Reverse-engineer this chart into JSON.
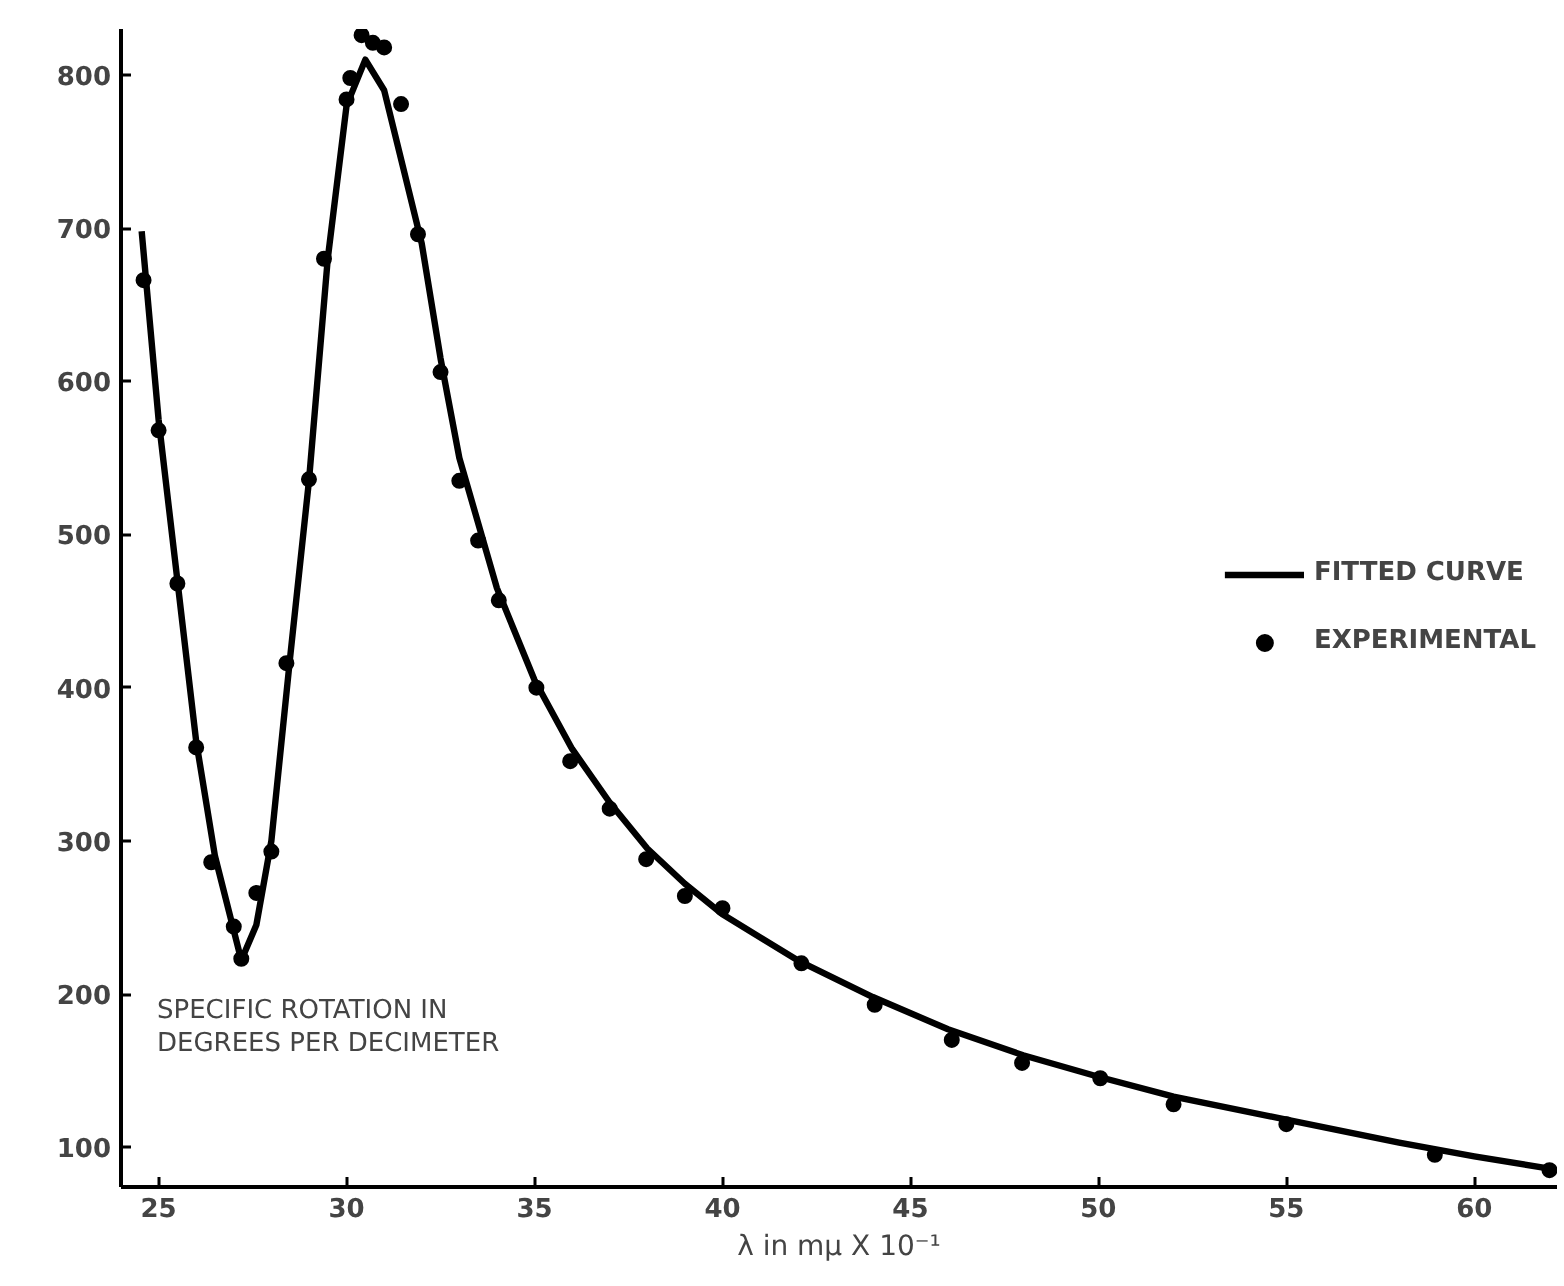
{
  "chart_data": {
    "type": "line",
    "xlabel": "λ in mμ X 10⁻¹",
    "ylabel": "SPECIFIC ROTATION IN\nDEGREES PER DECIMETER",
    "xlim": [
      24,
      62.2
    ],
    "ylim": [
      74,
      830
    ],
    "xticks": [
      25,
      30,
      35,
      40,
      45,
      50,
      55,
      60
    ],
    "yticks": [
      100,
      200,
      300,
      400,
      500,
      600,
      700,
      800
    ],
    "grid": false,
    "legend": "right",
    "series": [
      {
        "name": "FITTED CURVE",
        "line_style": "solid",
        "color": "#000000",
        "x": [
          24.55,
          25,
          25.5,
          26,
          26.5,
          27.2,
          27.6,
          28,
          28.5,
          29,
          29.5,
          30,
          30.5,
          31,
          31.5,
          32,
          32.5,
          33,
          34,
          35,
          36,
          37,
          38,
          39,
          40,
          42,
          44,
          46,
          48,
          50,
          52,
          55,
          58,
          60,
          62
        ],
        "values": [
          698,
          575,
          470,
          365,
          290,
          222,
          245,
          300,
          420,
          535,
          680,
          780,
          810,
          790,
          740,
          690,
          615,
          550,
          465,
          405,
          360,
          325,
          295,
          272,
          252,
          222,
          198,
          177,
          160,
          146,
          133,
          118,
          103,
          94,
          86
        ]
      },
      {
        "name": "EXPERIMENTAL",
        "type": "scatter",
        "marker": "circle",
        "color": "#000000",
        "x": [
          24.6,
          25.0,
          25.5,
          26.0,
          26.4,
          27.0,
          27.2,
          27.6,
          28.0,
          28.4,
          29.0,
          29.4,
          30.0,
          30.1,
          30.4,
          30.7,
          31.0,
          31.45,
          31.9,
          32.5,
          33.0,
          33.5,
          34.05,
          35.05,
          35.95,
          37.0,
          37.97,
          39.0,
          40.0,
          42.1,
          44.05,
          46.1,
          47.97,
          50.05,
          52.0,
          55.0,
          58.95,
          62.0
        ],
        "values": [
          666,
          568,
          468,
          361,
          286,
          244,
          223,
          266,
          293,
          416,
          536,
          680,
          784,
          798,
          826,
          821,
          818,
          781,
          696,
          606,
          535,
          496,
          457,
          400,
          352,
          321,
          288,
          264,
          256,
          220,
          193,
          170,
          155,
          145,
          128,
          115,
          95,
          85
        ]
      }
    ]
  }
}
